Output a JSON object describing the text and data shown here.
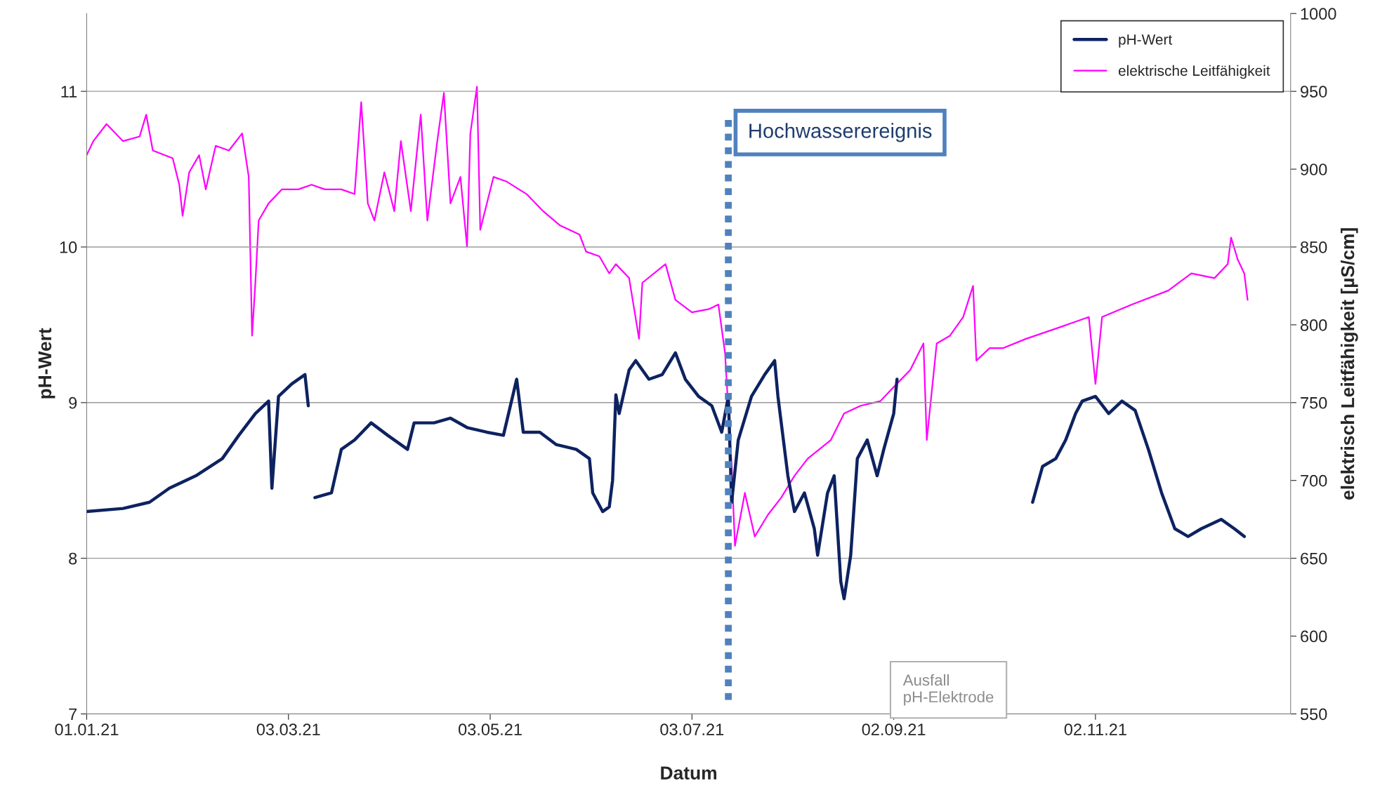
{
  "chart_data": {
    "type": "line",
    "xlabel": "Datum",
    "ylabel": "pH-Wert",
    "y2label": "elektrisch Leitfähigkeit [µS/cm]",
    "xlim": [
      "2021-01-01",
      "2021-12-31"
    ],
    "xticks": [
      {
        "value": "2021-01-01",
        "label": "01.01.21"
      },
      {
        "value": "2021-03-03",
        "label": "03.03.21"
      },
      {
        "value": "2021-05-03",
        "label": "03.05.21"
      },
      {
        "value": "2021-07-03",
        "label": "03.07.21"
      },
      {
        "value": "2021-09-02",
        "label": "02.09.21"
      },
      {
        "value": "2021-11-02",
        "label": "02.11.21"
      }
    ],
    "ylim": [
      7,
      11.5
    ],
    "yticks": [
      7,
      8,
      9,
      10,
      11
    ],
    "y2lim": [
      550,
      1000
    ],
    "y2ticks": [
      550,
      600,
      650,
      700,
      750,
      800,
      850,
      900,
      950,
      1000
    ],
    "grid": "y",
    "legend": "top right",
    "marker": "none",
    "line_style": "solid",
    "series": [
      {
        "name": "pH-Wert",
        "color": "#0d2260",
        "x": [
          "2021-01-01",
          "2021-01-12",
          "2021-01-20",
          "2021-01-26",
          "2021-02-03",
          "2021-02-11",
          "2021-02-16",
          "2021-02-21",
          "2021-02-25",
          "2021-02-26",
          "2021-02-28",
          "2021-03-04",
          "2021-03-08",
          "2021-03-09",
          "2021-03-10",
          "2021-03-11",
          "2021-03-16",
          "2021-03-19",
          "2021-03-23",
          "2021-03-28",
          "2021-04-02",
          "2021-04-08",
          "2021-04-10",
          "2021-04-16",
          "2021-04-21",
          "2021-04-26",
          "2021-05-02",
          "2021-05-07",
          "2021-05-11",
          "2021-05-13",
          "2021-05-18",
          "2021-05-23",
          "2021-05-29",
          "2021-06-02",
          "2021-06-03",
          "2021-06-06",
          "2021-06-08",
          "2021-06-09",
          "2021-06-10",
          "2021-06-11",
          "2021-06-14",
          "2021-06-16",
          "2021-06-20",
          "2021-06-24",
          "2021-06-28",
          "2021-07-01",
          "2021-07-05",
          "2021-07-09",
          "2021-07-12",
          "2021-07-14",
          "2021-07-15",
          "2021-07-17",
          "2021-07-21",
          "2021-07-25",
          "2021-07-28",
          "2021-07-29",
          "2021-08-01",
          "2021-08-03",
          "2021-08-06",
          "2021-08-09",
          "2021-08-10",
          "2021-08-13",
          "2021-08-15",
          "2021-08-17",
          "2021-08-18",
          "2021-08-20",
          "2021-08-22",
          "2021-08-25",
          "2021-08-28",
          "2021-08-30",
          "2021-09-02",
          "2021-09-03",
          "2021-10-01",
          "2021-10-14",
          "2021-10-17",
          "2021-10-21",
          "2021-10-24",
          "2021-10-27",
          "2021-10-29",
          "2021-11-02",
          "2021-11-06",
          "2021-11-10",
          "2021-11-14",
          "2021-11-18",
          "2021-11-22",
          "2021-11-26",
          "2021-11-30",
          "2021-12-04",
          "2021-12-10",
          "2021-12-14",
          "2021-12-17"
        ],
        "values": [
          8.3,
          8.32,
          8.36,
          8.45,
          8.53,
          8.64,
          8.79,
          8.93,
          9.01,
          8.45,
          9.04,
          9.12,
          9.18,
          8.98,
          null,
          8.39,
          8.42,
          8.7,
          8.76,
          8.87,
          8.79,
          8.7,
          8.87,
          8.87,
          8.9,
          8.84,
          8.81,
          8.79,
          9.15,
          8.81,
          8.81,
          8.73,
          8.7,
          8.64,
          8.42,
          8.3,
          8.33,
          8.5,
          9.05,
          8.93,
          9.21,
          9.27,
          9.15,
          9.18,
          9.32,
          9.15,
          9.04,
          8.98,
          8.81,
          9.04,
          8.36,
          8.76,
          9.04,
          9.18,
          9.27,
          9.04,
          8.53,
          8.3,
          8.42,
          8.19,
          8.02,
          8.42,
          8.53,
          7.85,
          7.74,
          8.02,
          8.64,
          8.76,
          8.53,
          8.7,
          8.93,
          9.15,
          null,
          8.36,
          8.59,
          8.64,
          8.76,
          8.93,
          9.01,
          9.04,
          8.93,
          9.01,
          8.95,
          8.7,
          8.42,
          8.19,
          8.14,
          8.19,
          8.25,
          8.19,
          8.14
        ]
      },
      {
        "name": "elektrische Leitfähigkeit",
        "color": "#ff00ff",
        "axis": "y2",
        "x": [
          "2021-01-01",
          "2021-01-03",
          "2021-01-07",
          "2021-01-12",
          "2021-01-17",
          "2021-01-19",
          "2021-01-21",
          "2021-01-27",
          "2021-01-29",
          "2021-01-30",
          "2021-02-01",
          "2021-02-04",
          "2021-02-06",
          "2021-02-09",
          "2021-02-13",
          "2021-02-17",
          "2021-02-19",
          "2021-02-20",
          "2021-02-21",
          "2021-02-22",
          "2021-02-25",
          "2021-03-01",
          "2021-03-06",
          "2021-03-10",
          "2021-03-14",
          "2021-03-19",
          "2021-03-23",
          "2021-03-25",
          "2021-03-27",
          "2021-03-29",
          "2021-04-01",
          "2021-04-04",
          "2021-04-06",
          "2021-04-09",
          "2021-04-12",
          "2021-04-14",
          "2021-04-17",
          "2021-04-19",
          "2021-04-21",
          "2021-04-24",
          "2021-04-26",
          "2021-04-27",
          "2021-04-29",
          "2021-04-30",
          "2021-05-04",
          "2021-05-08",
          "2021-05-14",
          "2021-05-19",
          "2021-05-24",
          "2021-05-30",
          "2021-06-01",
          "2021-06-05",
          "2021-06-08",
          "2021-06-10",
          "2021-06-14",
          "2021-06-17",
          "2021-06-18",
          "2021-06-25",
          "2021-06-28",
          "2021-07-03",
          "2021-07-08",
          "2021-07-11",
          "2021-07-13",
          "2021-07-15",
          "2021-07-16",
          "2021-07-19",
          "2021-07-22",
          "2021-07-26",
          "2021-07-30",
          "2021-08-03",
          "2021-08-07",
          "2021-08-14",
          "2021-08-18",
          "2021-08-23",
          "2021-08-29",
          "2021-09-02",
          "2021-09-07",
          "2021-09-11",
          "2021-09-12",
          "2021-09-15",
          "2021-09-19",
          "2021-09-23",
          "2021-09-26",
          "2021-09-27",
          "2021-10-01",
          "2021-10-05",
          "2021-10-12",
          "2021-10-23",
          "2021-10-31",
          "2021-11-02",
          "2021-11-04",
          "2021-11-13",
          "2021-11-24",
          "2021-12-01",
          "2021-12-08",
          "2021-12-12",
          "2021-12-13",
          "2021-12-15",
          "2021-12-17",
          "2021-12-18"
        ],
        "values": [
          909,
          918,
          929,
          918,
          921,
          935,
          912,
          907,
          890,
          870,
          898,
          909,
          887,
          915,
          912,
          923,
          895,
          793,
          827,
          867,
          878,
          887,
          887,
          890,
          887,
          887,
          884,
          943,
          878,
          867,
          898,
          873,
          918,
          873,
          935,
          867,
          918,
          949,
          878,
          895,
          850,
          923,
          953,
          861,
          895,
          892,
          884,
          873,
          864,
          858,
          847,
          844,
          833,
          839,
          830,
          791,
          827,
          839,
          816,
          808,
          810,
          813,
          782,
          709,
          658,
          692,
          664,
          678,
          689,
          703,
          714,
          726,
          743,
          748,
          751,
          760,
          771,
          788,
          726,
          788,
          793,
          805,
          825,
          777,
          785,
          785,
          791,
          799,
          805,
          762,
          805,
          813,
          822,
          833,
          830,
          839,
          856,
          842,
          833,
          816
        ]
      }
    ],
    "ref_lines": [
      {
        "axis": "x",
        "value": "2021-07-14",
        "label": "Hochwasserereignis",
        "color": "#4f81bd",
        "line_style": "dotted"
      }
    ],
    "annotations": [
      "Ausfall\npH-Elektrode"
    ]
  }
}
